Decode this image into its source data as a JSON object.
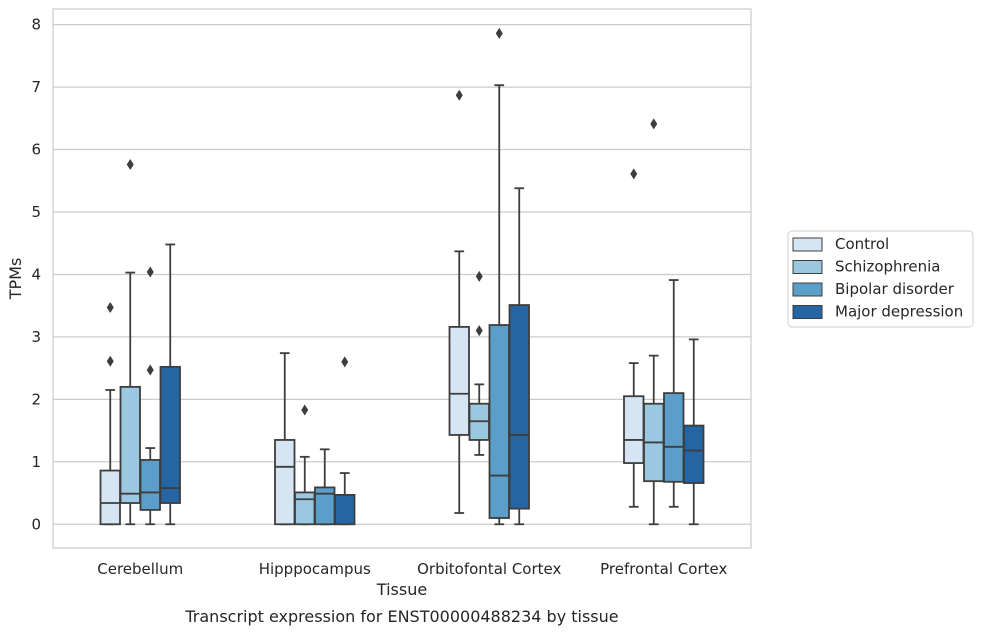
{
  "chart_data": {
    "type": "box",
    "title": "",
    "caption": "Transcript expression for ENST00000488234 by tissue",
    "xlabel": "Tissue",
    "ylabel": "TPMs",
    "ylim": [
      -0.38,
      8.25
    ],
    "yticks": [
      0,
      1,
      2,
      3,
      4,
      5,
      6,
      7,
      8
    ],
    "grid": "horizontal",
    "legend_position": "right",
    "categories": [
      "Cerebellum",
      "Hipppocampus",
      "Orbitofontal Cortex",
      "Prefrontal Cortex"
    ],
    "series": [
      {
        "name": "Control",
        "color": "#d6e5f4",
        "boxes": [
          {
            "whisker_low": 0,
            "q1": 0,
            "median": 0.34,
            "q3": 0.86,
            "whisker_high": 2.15,
            "outliers": [
              2.61,
              3.47
            ]
          },
          {
            "whisker_low": 0,
            "q1": 0,
            "median": 0.92,
            "q3": 1.35,
            "whisker_high": 2.74,
            "outliers": []
          },
          {
            "whisker_low": 0.18,
            "q1": 1.43,
            "median": 2.09,
            "q3": 3.16,
            "whisker_high": 4.37,
            "outliers": [
              6.87
            ]
          },
          {
            "whisker_low": 0.28,
            "q1": 0.98,
            "median": 1.35,
            "q3": 2.05,
            "whisker_high": 2.58,
            "outliers": [
              5.61
            ]
          }
        ]
      },
      {
        "name": "Schizophrenia",
        "color": "#9ac8e0",
        "boxes": [
          {
            "whisker_low": 0,
            "q1": 0.34,
            "median": 0.49,
            "q3": 2.2,
            "whisker_high": 4.03,
            "outliers": [
              5.76
            ]
          },
          {
            "whisker_low": 0,
            "q1": 0,
            "median": 0.4,
            "q3": 0.51,
            "whisker_high": 1.08,
            "outliers": [
              1.83
            ]
          },
          {
            "whisker_low": 1.11,
            "q1": 1.35,
            "median": 1.65,
            "q3": 1.93,
            "whisker_high": 2.24,
            "outliers": [
              3.1,
              3.97
            ]
          },
          {
            "whisker_low": 0,
            "q1": 0.69,
            "median": 1.31,
            "q3": 1.93,
            "whisker_high": 2.7,
            "outliers": [
              6.41
            ]
          }
        ]
      },
      {
        "name": "Bipolar disorder",
        "color": "#5a9ec9",
        "boxes": [
          {
            "whisker_low": 0,
            "q1": 0.23,
            "median": 0.51,
            "q3": 1.03,
            "whisker_high": 1.22,
            "outliers": [
              2.47,
              4.04
            ]
          },
          {
            "whisker_low": 0,
            "q1": 0,
            "median": 0.49,
            "q3": 0.59,
            "whisker_high": 1.2,
            "outliers": []
          },
          {
            "whisker_low": 0,
            "q1": 0.1,
            "median": 0.78,
            "q3": 3.19,
            "whisker_high": 7.03,
            "outliers": [
              7.86
            ]
          },
          {
            "whisker_low": 0.28,
            "q1": 0.68,
            "median": 1.24,
            "q3": 2.1,
            "whisker_high": 3.91,
            "outliers": []
          }
        ]
      },
      {
        "name": "Major depression",
        "color": "#2565a3",
        "boxes": [
          {
            "whisker_low": 0,
            "q1": 0.34,
            "median": 0.58,
            "q3": 2.52,
            "whisker_high": 4.48,
            "outliers": []
          },
          {
            "whisker_low": 0,
            "q1": 0,
            "median": 0.47,
            "q3": 0.47,
            "whisker_high": 0.82,
            "outliers": [
              2.6
            ]
          },
          {
            "whisker_low": 0,
            "q1": 0.25,
            "median": 1.43,
            "q3": 3.51,
            "whisker_high": 5.38,
            "outliers": []
          },
          {
            "whisker_low": 0,
            "q1": 0.66,
            "median": 1.18,
            "q3": 1.58,
            "whisker_high": 2.96,
            "outliers": []
          }
        ]
      }
    ]
  }
}
